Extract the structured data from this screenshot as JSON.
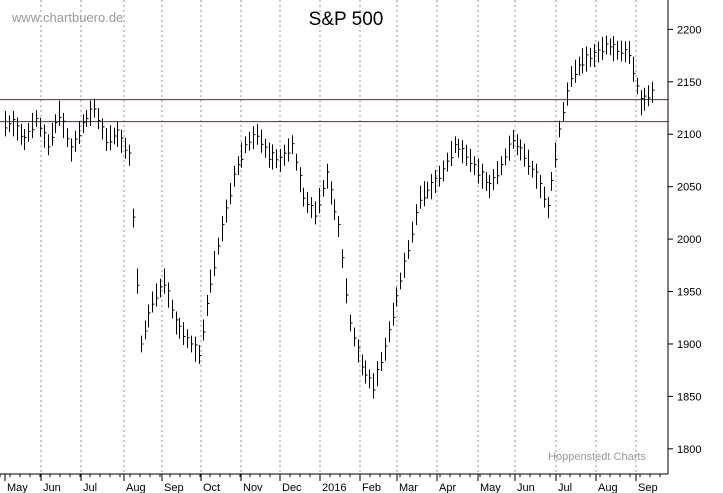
{
  "watermark": "www.chartbuero.de",
  "credit": "Hoppenstedt Charts",
  "chart_data": {
    "type": "bar",
    "subtype": "ohlc",
    "title": "S&P 500",
    "xlabel": "",
    "ylabel": "",
    "ylim": [
      1776,
      2228
    ],
    "y_ticks": [
      1800,
      1850,
      1900,
      1950,
      2000,
      2050,
      2100,
      2150,
      2200
    ],
    "y_axis_position": "right",
    "x_ticks": [
      "May",
      "Jun",
      "Jul",
      "Aug",
      "Sep",
      "Oct",
      "Nov",
      "Dec",
      "2016",
      "Feb",
      "Mar",
      "Apr",
      "May",
      "Jun",
      "Jul",
      "Aug",
      "Sep"
    ],
    "grid": "vertical-dotted",
    "horizontal_lines": [
      {
        "value": 2133,
        "color": "#cc0000"
      },
      {
        "value": 2112,
        "color": "#cc0000"
      }
    ],
    "series": [
      {
        "color": "#000000",
        "points": [
          [
            "May",
            2110
          ],
          [
            "May",
            2095
          ],
          [
            "Jun",
            2115
          ],
          [
            "Jun",
            2090
          ],
          [
            "Jun",
            2120
          ],
          [
            "Jul",
            2085
          ],
          [
            "Jul",
            2110
          ],
          [
            "Jul",
            2125
          ],
          [
            "Aug",
            2095
          ],
          [
            "Aug",
            2100
          ],
          [
            "Aug",
            2080
          ],
          [
            "Aug",
            1900
          ],
          [
            "Sep",
            1940
          ],
          [
            "Sep",
            1960
          ],
          [
            "Sep",
            1920
          ],
          [
            "Sep",
            1905
          ],
          [
            "Sep",
            1890
          ],
          [
            "Oct",
            1960
          ],
          [
            "Oct",
            2010
          ],
          [
            "Oct",
            2060
          ],
          [
            "Oct",
            2090
          ],
          [
            "Nov",
            2100
          ],
          [
            "Nov",
            2080
          ],
          [
            "Nov",
            2075
          ],
          [
            "Dec",
            2090
          ],
          [
            "Dec",
            2040
          ],
          [
            "Dec",
            2025
          ],
          [
            "Dec",
            2060
          ],
          [
            "2016",
            2012
          ],
          [
            "2016",
            1920
          ],
          [
            "2016",
            1880
          ],
          [
            "Feb",
            1860
          ],
          [
            "Feb",
            1895
          ],
          [
            "Feb",
            1945
          ],
          [
            "Mar",
            1990
          ],
          [
            "Mar",
            2040
          ],
          [
            "Mar",
            2050
          ],
          [
            "Apr",
            2065
          ],
          [
            "Apr",
            2090
          ],
          [
            "Apr",
            2080
          ],
          [
            "May",
            2065
          ],
          [
            "May",
            2050
          ],
          [
            "May",
            2070
          ],
          [
            "Jun",
            2095
          ],
          [
            "Jun",
            2080
          ],
          [
            "Jun",
            2060
          ],
          [
            "Jun",
            2030
          ],
          [
            "Jul",
            2105
          ],
          [
            "Jul",
            2155
          ],
          [
            "Jul",
            2170
          ],
          [
            "Aug",
            2175
          ],
          [
            "Aug",
            2185
          ],
          [
            "Aug",
            2180
          ],
          [
            "Sep",
            2178
          ],
          [
            "Sep",
            2130
          ],
          [
            "Sep",
            2140
          ]
        ]
      }
    ]
  }
}
